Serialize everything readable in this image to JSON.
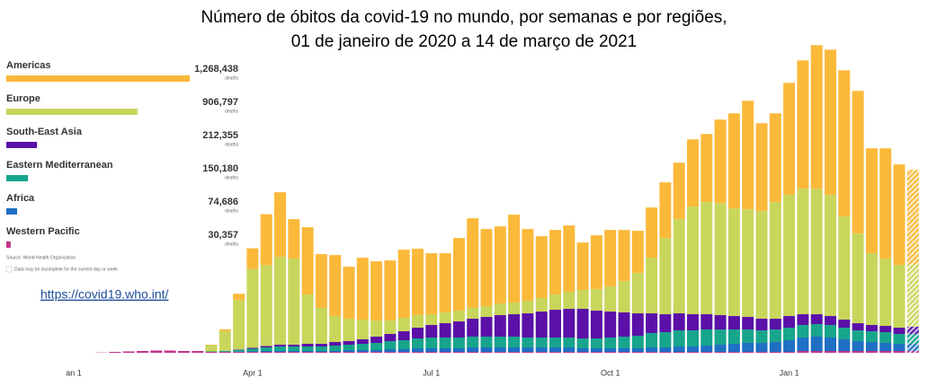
{
  "chart_data": {
    "type": "stacked_bar",
    "title": [
      "Número de óbitos da covid-19 no mundo, por semanas e por regiões,",
      "01 de janeiro de 2020 a 14 de março de 2021"
    ],
    "categories": [
      "an 1",
      null,
      null,
      null,
      null,
      null,
      null,
      null,
      null,
      null,
      null,
      null,
      null,
      "Apr 1",
      null,
      null,
      null,
      null,
      null,
      null,
      null,
      null,
      null,
      null,
      null,
      null,
      "Jul 1",
      null,
      null,
      null,
      null,
      null,
      null,
      null,
      null,
      null,
      null,
      null,
      null,
      "Oct 1",
      null,
      null,
      null,
      null,
      null,
      null,
      null,
      null,
      null,
      null,
      null,
      null,
      "Jan 1",
      null,
      null,
      null,
      null,
      null,
      null,
      null,
      null,
      null
    ],
    "ylim": [
      0,
      103000
    ],
    "total_unit": "deaths",
    "source": "Source: World Health Organization",
    "note": "Data may be incomplete for the current day or week",
    "hatch_last": true,
    "link": "https://covid19.who.int/",
    "series": [
      {
        "name": "Americas",
        "color": "#fbb93a",
        "total": 1268438,
        "total_label": "1,268,438",
        "values": [
          0,
          0,
          0,
          0,
          0,
          0,
          0,
          0,
          0,
          0,
          150,
          600,
          2100,
          6900,
          17100,
          21600,
          13200,
          22500,
          18000,
          20400,
          17400,
          20700,
          19800,
          20100,
          22800,
          22200,
          20400,
          19800,
          24300,
          30000,
          25800,
          25800,
          29400,
          24000,
          20700,
          21600,
          22200,
          15900,
          18000,
          18900,
          17100,
          14100,
          16800,
          18600,
          18900,
          22500,
          22800,
          27900,
          31800,
          36300,
          29400,
          29700,
          37500,
          42900,
          48000,
          48600,
          48900,
          47700,
          35100,
          36900,
          33600,
          31500
        ]
      },
      {
        "name": "Europe",
        "color": "#c8d65b",
        "total": 906797,
        "total_label": "906,797",
        "values": [
          0,
          0,
          0,
          0,
          0,
          0,
          0,
          0,
          0,
          0,
          2100,
          6600,
          16500,
          26400,
          27000,
          29400,
          28800,
          16500,
          12000,
          8700,
          7500,
          6600,
          5400,
          4500,
          4500,
          4200,
          3600,
          3600,
          3600,
          3600,
          3600,
          3900,
          3900,
          4200,
          4500,
          5100,
          5700,
          6300,
          7200,
          8400,
          10500,
          13500,
          18600,
          25500,
          31500,
          36000,
          37500,
          37500,
          36000,
          36000,
          36000,
          39000,
          40500,
          42000,
          42000,
          40500,
          34500,
          30000,
          24000,
          22500,
          21000,
          21000
        ]
      },
      {
        "name": "South-East Asia",
        "color": "#5b10a8",
        "total": 212355,
        "total_label": "212,355",
        "values": [
          0,
          0,
          0,
          0,
          0,
          0,
          0,
          0,
          0,
          0,
          0,
          30,
          150,
          300,
          450,
          600,
          600,
          900,
          900,
          1200,
          1200,
          1500,
          2100,
          2400,
          3000,
          3600,
          4200,
          4800,
          5400,
          6000,
          6600,
          7200,
          7500,
          8100,
          8700,
          9300,
          9600,
          9900,
          9300,
          8700,
          8100,
          7500,
          6600,
          6000,
          5700,
          5400,
          5100,
          4800,
          4500,
          4200,
          3900,
          3600,
          3900,
          3600,
          3300,
          3000,
          2700,
          2400,
          2100,
          2100,
          2100,
          2400
        ]
      },
      {
        "name": "Eastern Mediterranean",
        "color": "#17a58c",
        "total": 150180,
        "total_label": "150,180",
        "values": [
          0,
          0,
          0,
          0,
          0,
          0,
          0,
          0,
          0,
          0,
          150,
          300,
          600,
          900,
          1200,
          1500,
          1500,
          1500,
          1500,
          1800,
          1800,
          2100,
          2400,
          2700,
          3000,
          3300,
          3600,
          3600,
          3600,
          3600,
          3600,
          3600,
          3600,
          3300,
          3300,
          3300,
          3300,
          3300,
          3300,
          3600,
          3900,
          4200,
          4800,
          5100,
          5400,
          5400,
          5400,
          5100,
          4800,
          4500,
          4200,
          4200,
          4200,
          4200,
          4200,
          4200,
          3900,
          3600,
          3600,
          3600,
          3300,
          3300
        ]
      },
      {
        "name": "Africa",
        "color": "#1f6fc4",
        "total": 74686,
        "total_label": "74,686",
        "values": [
          0,
          0,
          0,
          0,
          0,
          0,
          0,
          0,
          0,
          0,
          0,
          30,
          90,
          150,
          300,
          300,
          300,
          300,
          300,
          300,
          600,
          600,
          600,
          900,
          900,
          1200,
          1200,
          1200,
          1200,
          1500,
          1500,
          1500,
          1500,
          1500,
          1500,
          1500,
          1500,
          1200,
          1200,
          1200,
          1200,
          1200,
          1500,
          1500,
          1800,
          1800,
          2100,
          2400,
          2700,
          3000,
          3000,
          3300,
          3900,
          4500,
          4800,
          4500,
          3900,
          3300,
          3000,
          2700,
          2400,
          2400
        ]
      },
      {
        "name": "Western Pacific",
        "color": "#c2338b",
        "total": 30357,
        "total_label": "30,357",
        "values": [
          0,
          0,
          90,
          300,
          450,
          600,
          750,
          750,
          600,
          600,
          300,
          300,
          300,
          300,
          300,
          300,
          300,
          300,
          300,
          300,
          300,
          300,
          300,
          300,
          300,
          300,
          300,
          300,
          300,
          300,
          300,
          300,
          300,
          300,
          300,
          300,
          300,
          300,
          300,
          300,
          300,
          300,
          300,
          300,
          300,
          300,
          300,
          300,
          300,
          300,
          300,
          300,
          300,
          600,
          600,
          600,
          600,
          600,
          600,
          600,
          600,
          600
        ]
      }
    ]
  }
}
